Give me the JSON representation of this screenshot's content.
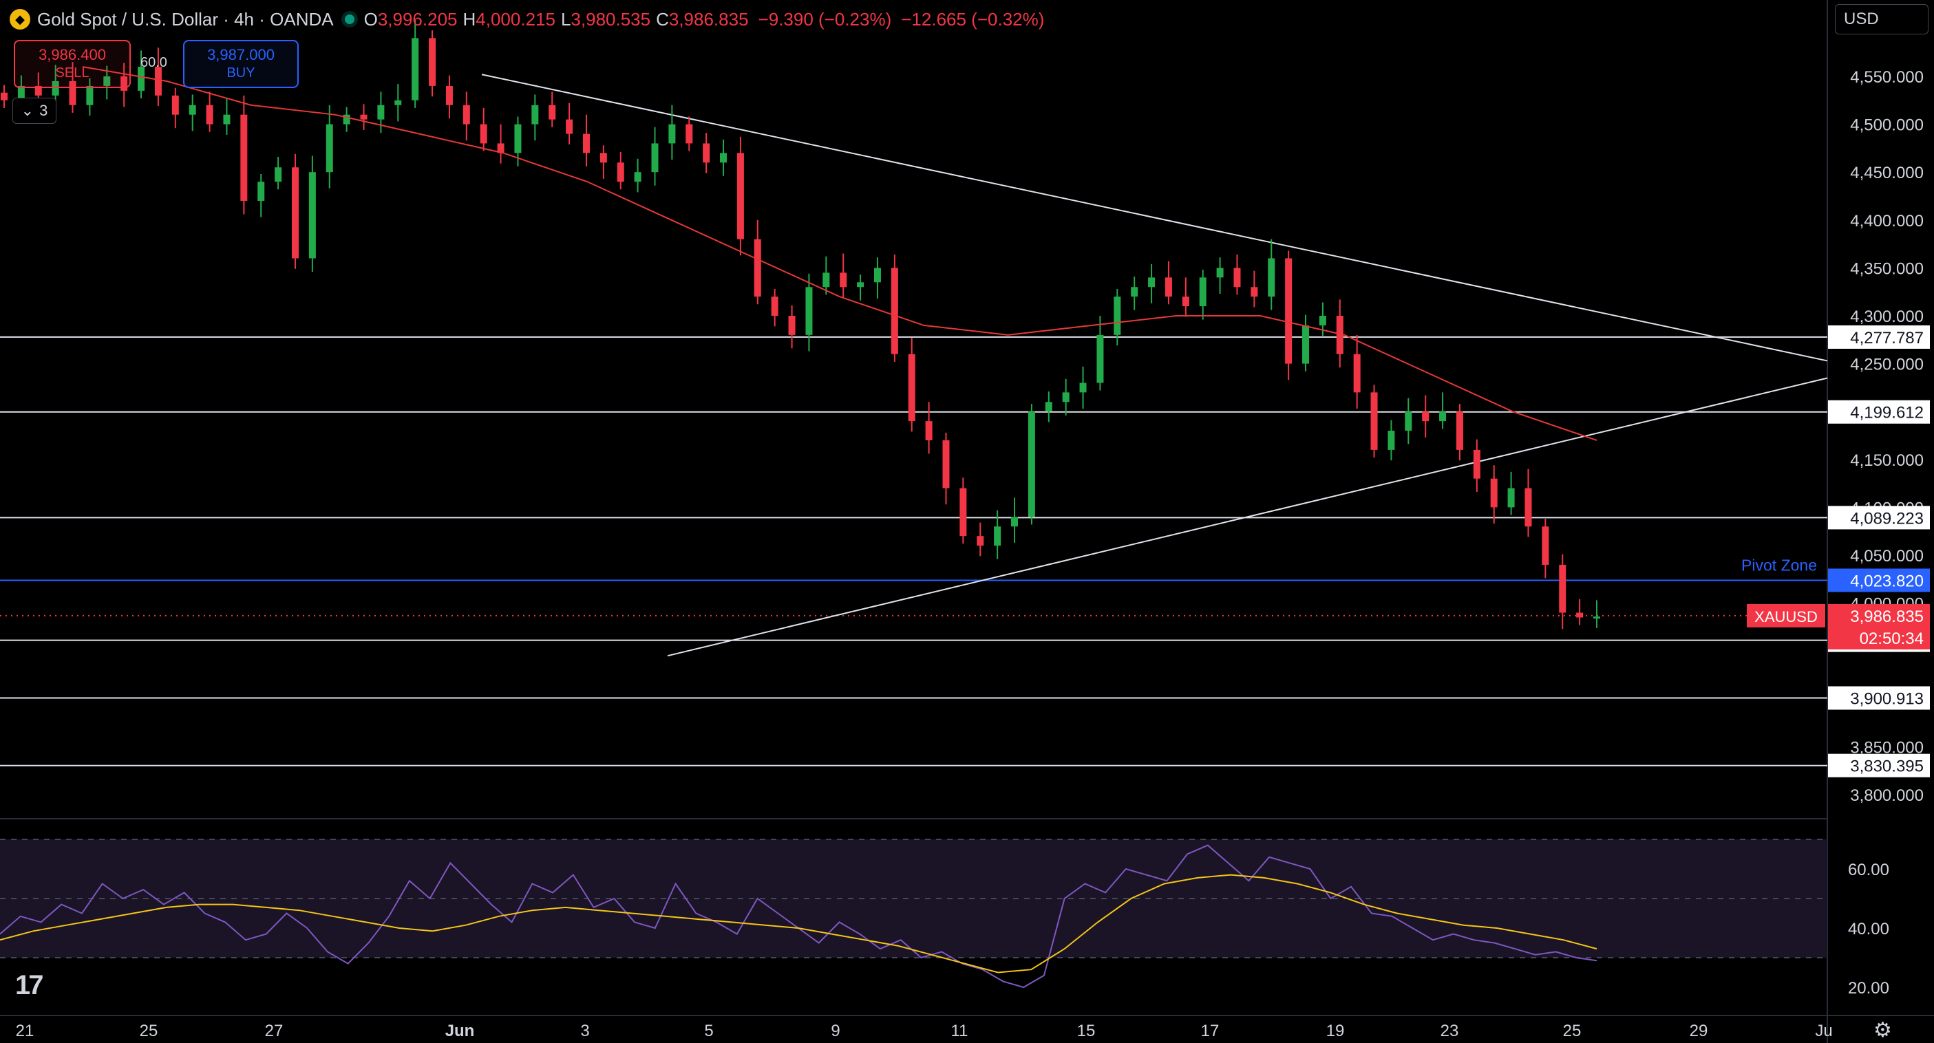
{
  "header": {
    "symbol_title": "Gold Spot / U.S. Dollar · 4h · OANDA",
    "open_label": "O",
    "open": "3,996.205",
    "high_label": "H",
    "high": "4,000.215",
    "low_label": "L",
    "low": "3,980.535",
    "close_label": "C",
    "close": "3,986.835",
    "change": "−9.390 (−0.23%)",
    "change2": "−12.665 (−0.32%)"
  },
  "trade": {
    "sell_price": "3,986.400",
    "sell_label": "SELL",
    "buy_price": "3,987.000",
    "buy_label": "BUY",
    "spread": "60.0"
  },
  "collapse_count": "3",
  "currency_select": "USD",
  "colors": {
    "up": "#22ab4a",
    "down": "#f23645",
    "ma": "#e53935",
    "rsi": "#7e57c2",
    "rsi_ma": "#f5c518",
    "pivot": "#2962ff"
  },
  "chart_data": [
    {
      "type": "candlestick",
      "title": "Gold Spot / U.S. Dollar · 4h · OANDA",
      "ylim": [
        3770,
        4600
      ],
      "price_ticks": [
        "4,550.000",
        "4,500.000",
        "4,450.000",
        "4,400.000",
        "4,350.000",
        "4,300.000",
        "4,250.000",
        "4,150.000",
        "4,100.000",
        "4,050.000",
        "4,000.000",
        "3,850.000",
        "3,800.000"
      ],
      "x_ticks": [
        "21",
        "25",
        "27",
        "Jun",
        "3",
        "5",
        "9",
        "11",
        "15",
        "17",
        "19",
        "23",
        "25",
        "29",
        "Ju"
      ],
      "horizontal_levels": [
        {
          "value": 4277.787,
          "label": "4,277.787"
        },
        {
          "value": 4199.612,
          "label": "4,199.612"
        },
        {
          "value": 4089.223,
          "label": "4,089.223"
        },
        {
          "value": 3961.201,
          "label": "3,961.201"
        },
        {
          "value": 3900.913,
          "label": "3,900.913"
        },
        {
          "value": 3830.395,
          "label": "3,830.395"
        }
      ],
      "pivot_zone": {
        "value": 4023.82,
        "label": "4,023.820",
        "name": "Pivot Zone"
      },
      "last_price": {
        "value": 3986.835,
        "label": "3,986.835",
        "symbol": "XAUUSD",
        "countdown": "02:50:34"
      },
      "trendlines": [
        {
          "from": [
            0.0,
            4552
          ],
          "to": [
            1.0,
            4253
          ]
        },
        {
          "from": [
            0.0,
            3945
          ],
          "to": [
            1.0,
            4235
          ]
        }
      ],
      "candle_path": [
        4525,
        4540,
        4530,
        4545,
        4520,
        4540,
        4550,
        4535,
        4560,
        4530,
        4510,
        4520,
        4500,
        4510,
        4420,
        4440,
        4455,
        4360,
        4450,
        4500,
        4510,
        4505,
        4520,
        4525,
        4590,
        4540,
        4520,
        4500,
        4480,
        4470,
        4500,
        4520,
        4505,
        4490,
        4470,
        4460,
        4440,
        4450,
        4480,
        4500,
        4480,
        4460,
        4470,
        4380,
        4320,
        4300,
        4280,
        4330,
        4345,
        4330,
        4335,
        4350,
        4260,
        4190,
        4170,
        4120,
        4070,
        4060,
        4080,
        4090,
        4200,
        4210,
        4220,
        4230,
        4280,
        4320,
        4330,
        4340,
        4320,
        4310,
        4340,
        4350,
        4330,
        4320,
        4360,
        4250,
        4290,
        4300,
        4260,
        4220,
        4160,
        4180,
        4200,
        4190,
        4200,
        4160,
        4130,
        4100,
        4120,
        4080,
        4040,
        3990,
        3985,
        3986
      ],
      "ma_line": [
        4560,
        4545,
        4520,
        4510,
        4490,
        4470,
        4440,
        4400,
        4360,
        4320,
        4290,
        4280,
        4290,
        4300,
        4300,
        4280,
        4240,
        4200,
        4170
      ],
      "rsi": {
        "ylim": [
          15,
          75
        ],
        "levels": [
          30,
          50,
          70
        ],
        "ticks": [
          "60.00",
          "40.00",
          "20.00"
        ],
        "values": [
          38,
          44,
          42,
          48,
          45,
          55,
          50,
          53,
          48,
          52,
          45,
          42,
          36,
          38,
          45,
          40,
          32,
          28,
          35,
          44,
          56,
          50,
          62,
          55,
          48,
          42,
          55,
          52,
          58,
          47,
          50,
          42,
          40,
          55,
          45,
          42,
          38,
          50,
          45,
          40,
          35,
          42,
          38,
          33,
          36,
          30,
          32,
          28,
          26,
          22,
          20,
          24,
          50,
          55,
          52,
          60,
          58,
          56,
          65,
          68,
          62,
          56,
          64,
          62,
          60,
          50,
          54,
          45,
          44,
          40,
          36,
          38,
          36,
          35,
          33,
          31,
          32,
          30,
          29
        ],
        "ma_values": [
          36,
          39,
          41,
          43,
          45,
          47,
          48,
          48,
          47,
          46,
          44,
          42,
          40,
          39,
          41,
          44,
          46,
          47,
          46,
          45,
          44,
          43,
          42,
          41,
          40,
          38,
          36,
          34,
          31,
          28,
          25,
          26,
          33,
          42,
          50,
          55,
          57,
          58,
          57,
          55,
          52,
          48,
          45,
          43,
          41,
          40,
          38,
          36,
          33
        ]
      }
    }
  ]
}
